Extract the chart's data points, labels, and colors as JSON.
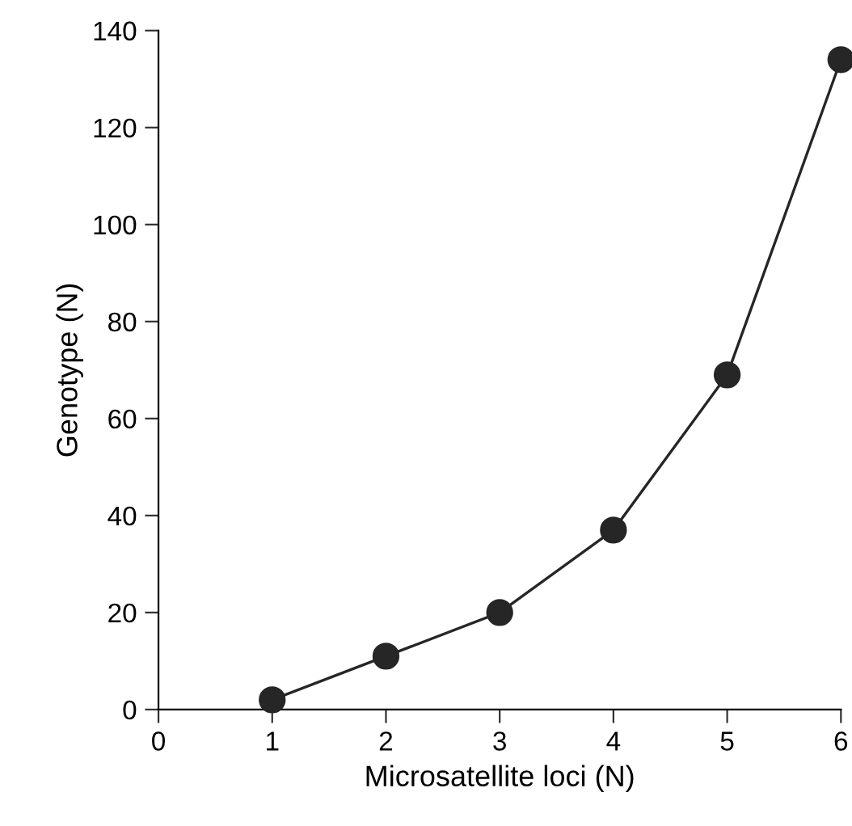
{
  "chart_data": {
    "type": "line",
    "xlabel": "Microsatellite loci (N)",
    "ylabel": "Genotype (N)",
    "x": [
      1,
      2,
      3,
      4,
      5,
      6
    ],
    "series": [
      {
        "color": "#262626",
        "values": [
          2,
          11,
          20,
          37,
          69,
          134
        ]
      }
    ],
    "xlim": [
      0,
      6
    ],
    "ylim": [
      0,
      140
    ],
    "xticks": [
      0,
      1,
      2,
      3,
      4,
      5,
      6
    ],
    "yticks": [
      0,
      20,
      40,
      60,
      80,
      100,
      120,
      140
    ],
    "marker": "circle",
    "line_style": "solid",
    "grid": false,
    "legend": false
  }
}
